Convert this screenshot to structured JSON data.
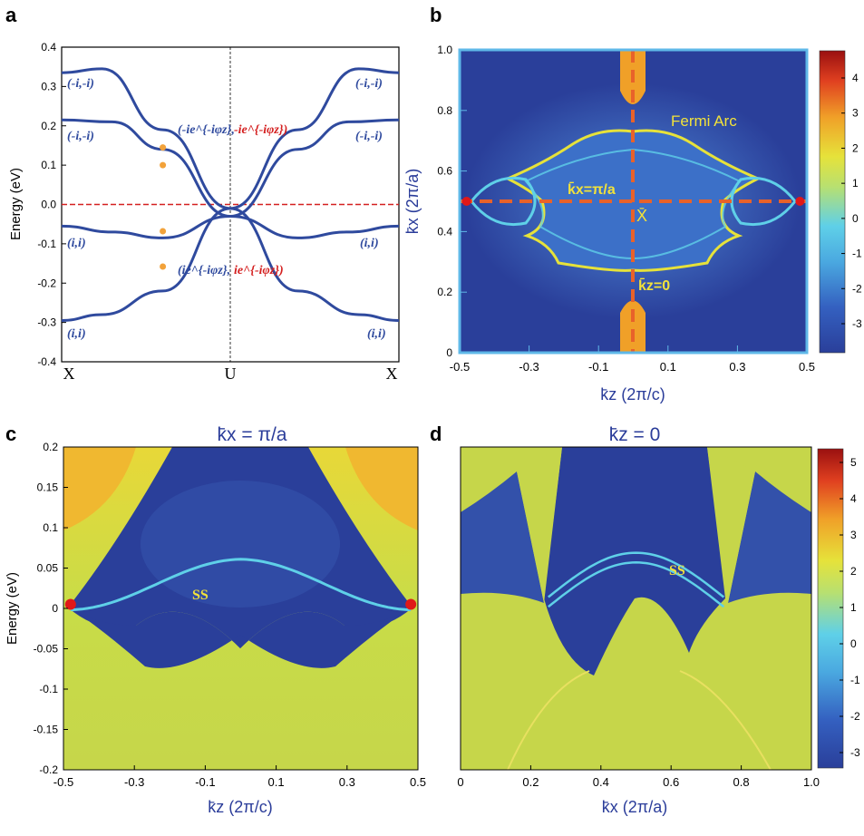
{
  "panels": {
    "a": {
      "letter": "a"
    },
    "b": {
      "letter": "b"
    },
    "c": {
      "letter": "c"
    },
    "d": {
      "letter": "d"
    }
  },
  "colors": {
    "band": "#2f4a9e",
    "fermi_line": "#d42020",
    "dot": "#f2a23a",
    "map_dark": "#2a3f9a",
    "map_mid": "#3f67c4",
    "map_cyan": "#5fd0e8",
    "map_yellow": "#e6e23a",
    "map_orange": "#f0a028",
    "dashed_orange": "#e8622a",
    "label_yellow": "#f2e23a",
    "title_blue": "#2b3d9a",
    "weyl_red": "#e01818"
  },
  "chart_data": [
    {
      "panel": "a",
      "type": "line",
      "title": "",
      "ylabel": "Energy (eV)",
      "xlabel": "",
      "ylim": [
        -0.4,
        0.4
      ],
      "yticks": [
        "0.4",
        "0.3",
        "0.2",
        "0.1",
        "0.0",
        "-0.1",
        "-0.2",
        "-0.3",
        "-0.4"
      ],
      "xtick_labels": [
        "X",
        "U",
        "X"
      ],
      "fermi_level": 0.0,
      "series": [
        {
          "name": "band-1",
          "x": [
            0,
            0.12,
            0.3,
            0.5,
            0.7,
            0.88,
            1.0
          ],
          "values": [
            0.335,
            0.345,
            0.19,
            -0.01,
            -0.22,
            -0.28,
            -0.295
          ]
        },
        {
          "name": "band-2",
          "x": [
            0,
            0.12,
            0.3,
            0.5,
            0.7,
            0.88,
            1.0
          ],
          "values": [
            -0.295,
            -0.28,
            -0.22,
            -0.01,
            0.19,
            0.345,
            0.335
          ]
        },
        {
          "name": "band-3",
          "x": [
            0,
            0.15,
            0.3,
            0.5,
            0.7,
            0.85,
            1.0
          ],
          "values": [
            0.215,
            0.21,
            0.14,
            -0.03,
            -0.085,
            -0.07,
            -0.055
          ]
        },
        {
          "name": "band-4",
          "x": [
            0,
            0.15,
            0.3,
            0.5,
            0.7,
            0.85,
            1.0
          ],
          "values": [
            -0.055,
            -0.07,
            -0.085,
            -0.03,
            0.14,
            0.21,
            0.215
          ]
        }
      ],
      "dots": [
        {
          "x": 0.3,
          "y": 0.145
        },
        {
          "x": 0.3,
          "y": 0.1
        },
        {
          "x": 0.3,
          "y": -0.068
        },
        {
          "x": 0.3,
          "y": -0.158
        }
      ],
      "labels": {
        "top_left": "(-i,-i)",
        "top_right": "(-i,-i)",
        "mid_left": "(-i,-i)",
        "mid_right": "(-i,-i)",
        "low_left": "(i,i)",
        "low_right": "(i,i)",
        "bottom_left": "(i,i)",
        "bottom_right": "(i,i)",
        "upper_center_blue": "(-ie^{-iφz},",
        "upper_center_red": "-ie^{-iφz})",
        "lower_center_blue": "(ie^{-iφz},",
        "lower_center_red": "ie^{-iφz})"
      }
    },
    {
      "panel": "b",
      "type": "heatmap",
      "xlabel": "k̄z (2π/c)",
      "ylabel": "k̄x (2π/a)",
      "xlim": [
        -0.5,
        0.5
      ],
      "ylim": [
        0,
        1.0
      ],
      "xticks": [
        "-0.5",
        "-0.3",
        "-0.1",
        "0.1",
        "0.3",
        "0.5"
      ],
      "yticks": [
        "1.0",
        "0.8",
        "0.6",
        "0.4",
        "0.2",
        "0"
      ],
      "colorbar": {
        "min": -3,
        "max": 4,
        "ticks": [
          "4",
          "3",
          "2",
          "1",
          "0",
          "-1",
          "-2",
          "-3"
        ]
      },
      "annotations": {
        "fermi_arc": "Fermi Arc",
        "kx_line": "k̄x=π/a",
        "x_point": "X̄",
        "kz_line": "k̄z=0"
      },
      "weyl_points": [
        {
          "kz": -0.48,
          "kx": 0.5
        },
        {
          "kz": 0.48,
          "kx": 0.5
        }
      ]
    },
    {
      "panel": "c",
      "type": "heatmap",
      "title": "k̄x = π/a",
      "xlabel": "k̄z (2π/c)",
      "ylabel": "Energy (eV)",
      "xlim": [
        -0.5,
        0.5
      ],
      "ylim": [
        -0.2,
        0.2
      ],
      "xticks": [
        "-0.5",
        "-0.3",
        "-0.1",
        "0.1",
        "0.3",
        "0.5"
      ],
      "yticks": [
        "0.2",
        "0.15",
        "0.1",
        "0.05",
        "0",
        "-0.05",
        "-0.1",
        "-0.15",
        "-0.2"
      ],
      "annotation": "SS",
      "weyl_points": [
        {
          "kz": -0.48,
          "E": 0.005
        },
        {
          "kz": 0.48,
          "E": 0.005
        }
      ]
    },
    {
      "panel": "d",
      "type": "heatmap",
      "title": "k̄z = 0",
      "xlabel": "k̄x (2π/a)",
      "ylabel": "",
      "xlim": [
        0,
        1.0
      ],
      "ylim": [
        -0.2,
        0.2
      ],
      "xticks": [
        "0",
        "0.2",
        "0.4",
        "0.6",
        "0.8",
        "1.0"
      ],
      "colorbar": {
        "min": -3,
        "max": 5,
        "ticks": [
          "5",
          "4",
          "3",
          "2",
          "1",
          "0",
          "-1",
          "-2",
          "-3"
        ]
      },
      "annotation": "SS"
    }
  ]
}
